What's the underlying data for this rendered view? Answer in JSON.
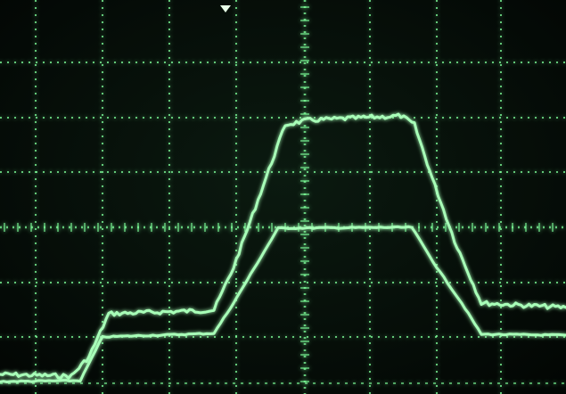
{
  "scope": {
    "background_color": "#050a07",
    "grid_color": "#7dff9a",
    "trace_color": "#a8ffb8",
    "trace_glow_color": "#3bdc62",
    "marker_color": "#e8ffe8",
    "grid_divisions": {
      "horizontal": 8.5,
      "vertical": 7
    },
    "top_marker": "trigger-marker-icon"
  },
  "traces": [
    {
      "name": "",
      "description_hidden": true
    },
    {
      "name": "",
      "description_hidden": true
    }
  ]
}
